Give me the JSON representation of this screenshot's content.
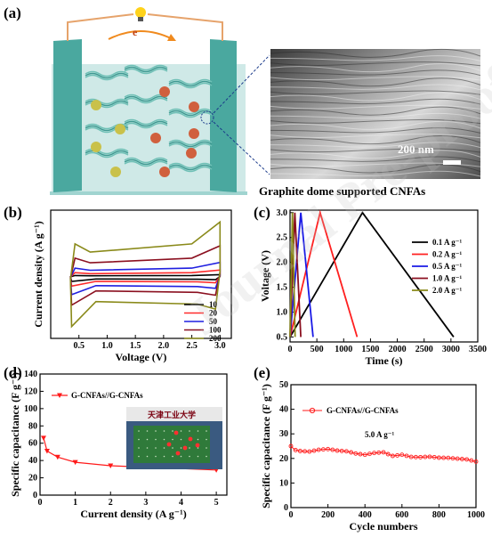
{
  "panel_labels": [
    "(a)",
    "(b)",
    "(c)",
    "(d)",
    "(e)"
  ],
  "panel_a": {
    "electron_label": "e",
    "scale_bar": "200 nm",
    "caption": "Graphite dome supported CNFAs"
  },
  "watermark": "Journal Pre-proof",
  "chart_data": [
    {
      "id": "b",
      "type": "line",
      "xlabel": "Voltage (V)",
      "ylabel": "Current density (A g⁻¹)",
      "xlim": [
        0,
        3.2
      ],
      "xticks": [
        "0.5",
        "1.0",
        "1.5",
        "2.0",
        "2.5",
        "3.0"
      ],
      "xtick_values": [
        0.5,
        1.0,
        1.5,
        2.0,
        2.5,
        3.0
      ],
      "legend_position": "bottom-right",
      "series": [
        {
          "name": "10",
          "color": "#000000",
          "ymin": -1.0,
          "ymax": 0.4
        },
        {
          "name": "20",
          "color": "#ff2a2a",
          "ymin": -2.0,
          "ymax": 1.4
        },
        {
          "name": "50",
          "color": "#1f1fe0",
          "ymin": -3.8,
          "ymax": 3.0
        },
        {
          "name": "100",
          "color": "#8b1020",
          "ymin": -6.0,
          "ymax": 6.5
        },
        {
          "name": "200",
          "color": "#8a8a1a",
          "ymin": -10.5,
          "ymax": 11.5
        }
      ]
    },
    {
      "id": "c",
      "type": "line",
      "xlabel": "Time (s)",
      "ylabel": "Voltage (V)",
      "xlim": [
        0,
        3500
      ],
      "ylim": [
        0.4,
        3.05
      ],
      "xticks": [
        "0",
        "500",
        "1000",
        "1500",
        "2000",
        "2500",
        "3000",
        "3500"
      ],
      "yticks": [
        "0.5",
        "1.0",
        "1.5",
        "2.0",
        "2.5",
        "3.0"
      ],
      "legend_position": "top-right",
      "series": [
        {
          "name": "0.1 A g⁻¹",
          "color": "#000000",
          "t_peak": 1350,
          "t_end": 3050
        },
        {
          "name": "0.2 A g⁻¹",
          "color": "#ff2020",
          "t_peak": 560,
          "t_end": 1250
        },
        {
          "name": "0.5 A g⁻¹",
          "color": "#1a1ae6",
          "t_peak": 200,
          "t_end": 430
        },
        {
          "name": "1.0 A g⁻¹",
          "color": "#8b1020",
          "t_peak": 90,
          "t_end": 200
        },
        {
          "name": "2.0 A g⁻¹",
          "color": "#8a8a1a",
          "t_peak": 45,
          "t_end": 95
        }
      ]
    },
    {
      "id": "d",
      "type": "line",
      "xlabel": "Current density (A g⁻¹)",
      "ylabel": "Specific capacitance (F g⁻¹)",
      "xlim": [
        0,
        5.3
      ],
      "ylim": [
        0,
        140
      ],
      "xticks": [
        "0",
        "1",
        "2",
        "3",
        "4",
        "5"
      ],
      "yticks": [
        "0",
        "20",
        "40",
        "60",
        "80",
        "100",
        "120",
        "140"
      ],
      "legend_position": "top-left",
      "series": [
        {
          "name": "G-CNFAs//G-CNFAs",
          "color": "#ff1a1a",
          "x": [
            0.1,
            0.2,
            0.5,
            1.0,
            2.0,
            5.0
          ],
          "y": [
            66,
            51,
            44,
            38,
            34,
            29
          ]
        }
      ],
      "inset_label": "天津工业大学"
    },
    {
      "id": "e",
      "type": "line",
      "xlabel": "Cycle numbers",
      "ylabel": "Specific capacitance (F g⁻¹)",
      "xlim": [
        0,
        1000
      ],
      "ylim": [
        0,
        50
      ],
      "xticks": [
        "0",
        "200",
        "400",
        "600",
        "800",
        "1000"
      ],
      "yticks": [
        "0",
        "10",
        "20",
        "30",
        "40",
        "50"
      ],
      "legend_position": "top-left",
      "annotation": "5.0 A g⁻¹",
      "series": [
        {
          "name": "G-CNFAs//G-CNFAs",
          "color": "#ff1a1a",
          "x": [
            0,
            20,
            50,
            100,
            150,
            200,
            250,
            300,
            350,
            400,
            450,
            500,
            550,
            600,
            650,
            700,
            750,
            800,
            850,
            900,
            950,
            1000
          ],
          "y": [
            25,
            23.5,
            23,
            22.8,
            23.5,
            23.8,
            23.2,
            22.9,
            22,
            21.5,
            22.2,
            22.5,
            21,
            21.5,
            20.6,
            20.5,
            20.7,
            20.3,
            20.2,
            19.9,
            19.6,
            18.7
          ]
        }
      ]
    }
  ]
}
